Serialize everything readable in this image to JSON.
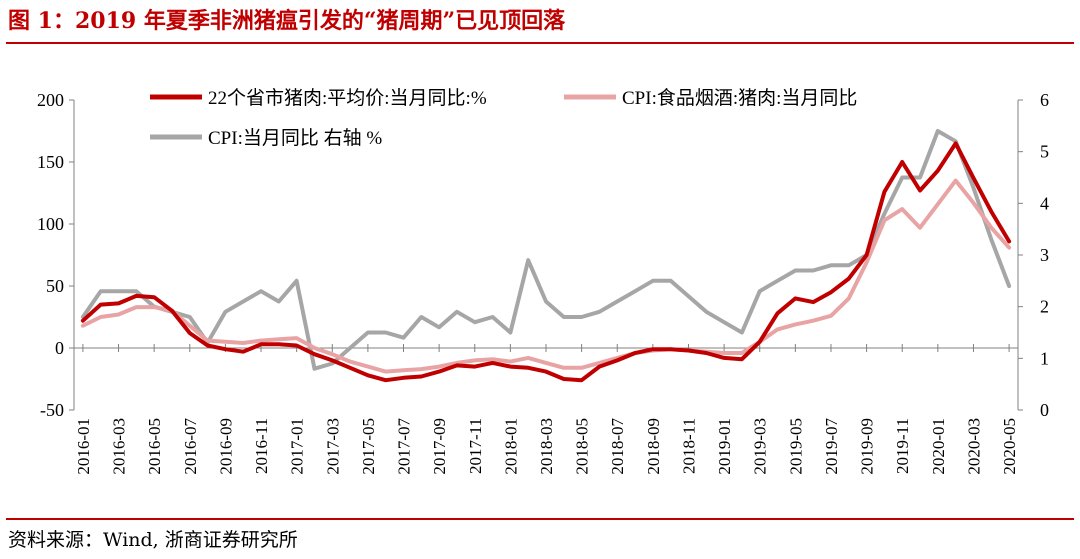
{
  "figure": {
    "title": "图 1：2019 年夏季非洲猪瘟引发的“猪周期”已见顶回落",
    "source": "资料来源：Wind, 浙商证券研究所"
  },
  "chart_data": {
    "type": "line",
    "x": [
      "2016-01",
      "2016-02",
      "2016-03",
      "2016-04",
      "2016-05",
      "2016-06",
      "2016-07",
      "2016-08",
      "2016-09",
      "2016-10",
      "2016-11",
      "2016-12",
      "2017-01",
      "2017-02",
      "2017-03",
      "2017-04",
      "2017-05",
      "2017-06",
      "2017-07",
      "2017-08",
      "2017-09",
      "2017-10",
      "2017-11",
      "2017-12",
      "2018-01",
      "2018-02",
      "2018-03",
      "2018-04",
      "2018-05",
      "2018-06",
      "2018-07",
      "2018-08",
      "2018-09",
      "2018-10",
      "2018-11",
      "2018-12",
      "2019-01",
      "2019-02",
      "2019-03",
      "2019-04",
      "2019-05",
      "2019-06",
      "2019-07",
      "2019-08",
      "2019-09",
      "2019-10",
      "2019-11",
      "2019-12",
      "2020-01",
      "2020-02",
      "2020-03",
      "2020-04",
      "2020-05"
    ],
    "x_tick_labels": [
      "2016-01",
      "2016-03",
      "2016-05",
      "2016-07",
      "2016-09",
      "2016-11",
      "2017-01",
      "2017-03",
      "2017-05",
      "2017-07",
      "2017-09",
      "2017-11",
      "2018-01",
      "2018-03",
      "2018-05",
      "2018-07",
      "2018-09",
      "2018-11",
      "2019-01",
      "2019-03",
      "2019-05",
      "2019-07",
      "2019-09",
      "2019-11",
      "2020-01",
      "2020-03",
      "2020-05"
    ],
    "y_left": {
      "lim": [
        -50,
        200
      ],
      "ticks": [
        "200",
        "150",
        "100",
        "50",
        "0",
        "-50"
      ],
      "tick_values": [
        200,
        150,
        100,
        50,
        0,
        -50
      ]
    },
    "y_right": {
      "lim": [
        0,
        6
      ],
      "ticks": [
        "6",
        "5",
        "4",
        "3",
        "2",
        "1",
        "0"
      ],
      "tick_values": [
        6,
        5,
        4,
        3,
        2,
        1,
        0
      ]
    },
    "legend_position": "top",
    "series": [
      {
        "name": "22个省市猪肉:平均价:当月同比:%",
        "axis": "left",
        "color": "#c00000",
        "values": [
          22,
          35,
          36,
          42,
          41,
          30,
          12,
          2,
          -1,
          -3,
          3,
          3,
          2,
          -5,
          -10,
          -16,
          -22,
          -26,
          -24,
          -23,
          -19,
          -14,
          -15,
          -12,
          -15,
          -16,
          -19,
          -25,
          -26,
          -15,
          -10,
          -4,
          -1,
          -1,
          -2,
          -4,
          -8,
          -9,
          5,
          28,
          40,
          37,
          45,
          56,
          75,
          126,
          150,
          127,
          143,
          165,
          137,
          110,
          86
        ]
      },
      {
        "name": "CPI:食品烟酒:猪肉:当月同比",
        "axis": "left",
        "color": "#e8a4a4",
        "values": [
          18,
          25,
          27,
          33,
          33,
          30,
          18,
          6,
          5,
          4,
          6,
          7,
          8,
          0,
          -5,
          -11,
          -15,
          -19,
          -18,
          -17,
          -15,
          -12,
          -10,
          -9,
          -11,
          -8,
          -12,
          -16,
          -16,
          -12,
          -8,
          -4,
          -2,
          -1,
          -2,
          -3,
          -4,
          -4,
          5,
          15,
          19,
          22,
          26,
          40,
          69,
          103,
          112,
          97,
          116,
          135,
          117,
          97,
          81
        ]
      },
      {
        "name": "CPI:当月同比 右轴 %",
        "axis": "right",
        "color": "#a6a6a6",
        "values": [
          1.8,
          2.3,
          2.3,
          2.3,
          2.0,
          1.9,
          1.8,
          1.3,
          1.9,
          2.1,
          2.3,
          2.1,
          2.5,
          0.8,
          0.9,
          1.2,
          1.5,
          1.5,
          1.4,
          1.8,
          1.6,
          1.9,
          1.7,
          1.8,
          1.5,
          2.9,
          2.1,
          1.8,
          1.8,
          1.9,
          2.1,
          2.3,
          2.5,
          2.5,
          2.2,
          1.9,
          1.7,
          1.5,
          2.3,
          2.5,
          2.7,
          2.7,
          2.8,
          2.8,
          3.0,
          3.8,
          4.5,
          4.5,
          5.4,
          5.2,
          4.3,
          3.3,
          2.4
        ]
      }
    ]
  }
}
